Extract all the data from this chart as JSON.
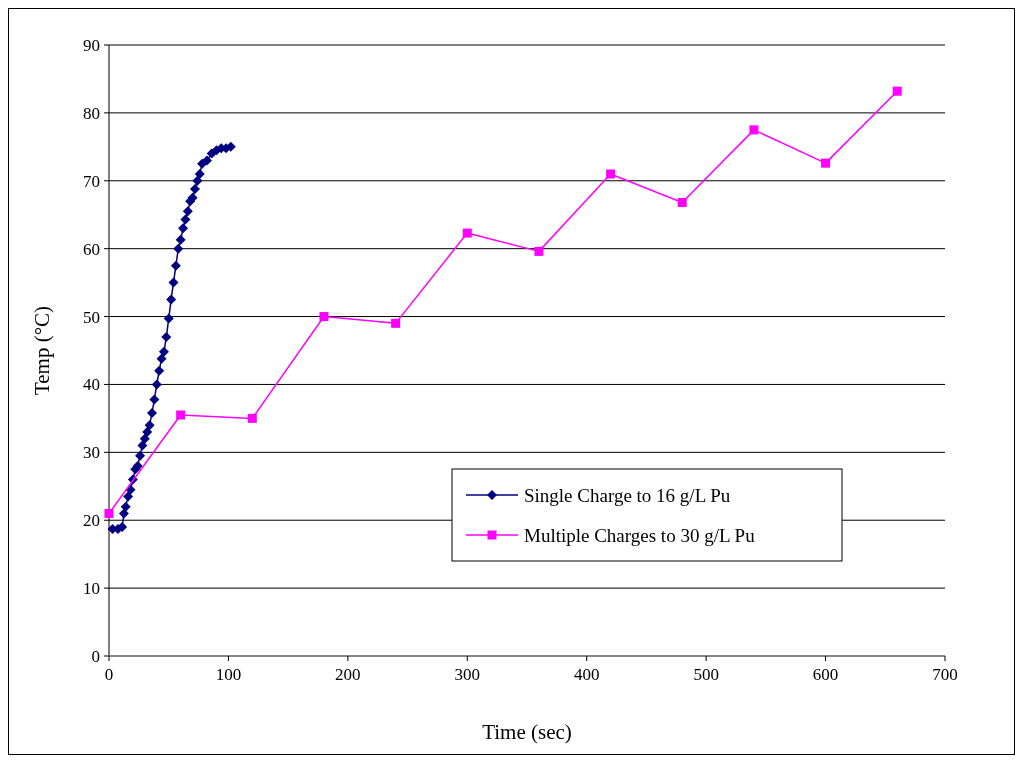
{
  "chart_data": {
    "type": "line",
    "xlabel": "Time (sec)",
    "ylabel": "Temp (°C)",
    "xlim": [
      0,
      700
    ],
    "xticks": [
      0,
      100,
      200,
      300,
      400,
      500,
      600,
      700
    ],
    "ylim": [
      0,
      90
    ],
    "yticks": [
      0,
      10,
      20,
      30,
      40,
      50,
      60,
      70,
      80,
      90
    ],
    "grid": "y",
    "legend": "bottom right",
    "series": [
      {
        "name": "Single Charge to 16 g/L Pu",
        "color": "#000080",
        "marker": "diamond",
        "x": [
          3,
          7.5,
          11,
          12.5,
          14,
          16,
          18,
          20,
          22,
          24,
          26,
          28,
          30,
          32,
          34,
          36,
          38,
          40,
          42,
          44,
          46,
          48,
          50,
          52,
          54,
          56,
          58,
          60,
          62,
          64,
          66,
          68,
          70,
          72,
          74,
          76,
          78,
          82,
          86,
          90,
          94,
          98,
          102
        ],
        "values": [
          18.7,
          18.7,
          19,
          21,
          22,
          23.5,
          24.5,
          26,
          27.5,
          28,
          29.5,
          31,
          32,
          33,
          34,
          35.8,
          37.8,
          40,
          42,
          43.8,
          44.8,
          47,
          49.7,
          52.5,
          55,
          57.5,
          60,
          61.3,
          63,
          64.3,
          65.5,
          67,
          67.5,
          68.8,
          70,
          71,
          72.5,
          73,
          74,
          74.5,
          74.8,
          74.8,
          75
        ]
      },
      {
        "name": "Multiple Charges to 30 g/L Pu",
        "color": "#ff00ff",
        "marker": "square",
        "x": [
          0,
          60,
          120,
          180,
          240,
          300,
          360,
          420,
          480,
          540,
          600,
          660
        ],
        "values": [
          21,
          35.5,
          35,
          50,
          49,
          62.3,
          59.6,
          71,
          66.8,
          77.5,
          72.6,
          83.2
        ]
      }
    ]
  }
}
